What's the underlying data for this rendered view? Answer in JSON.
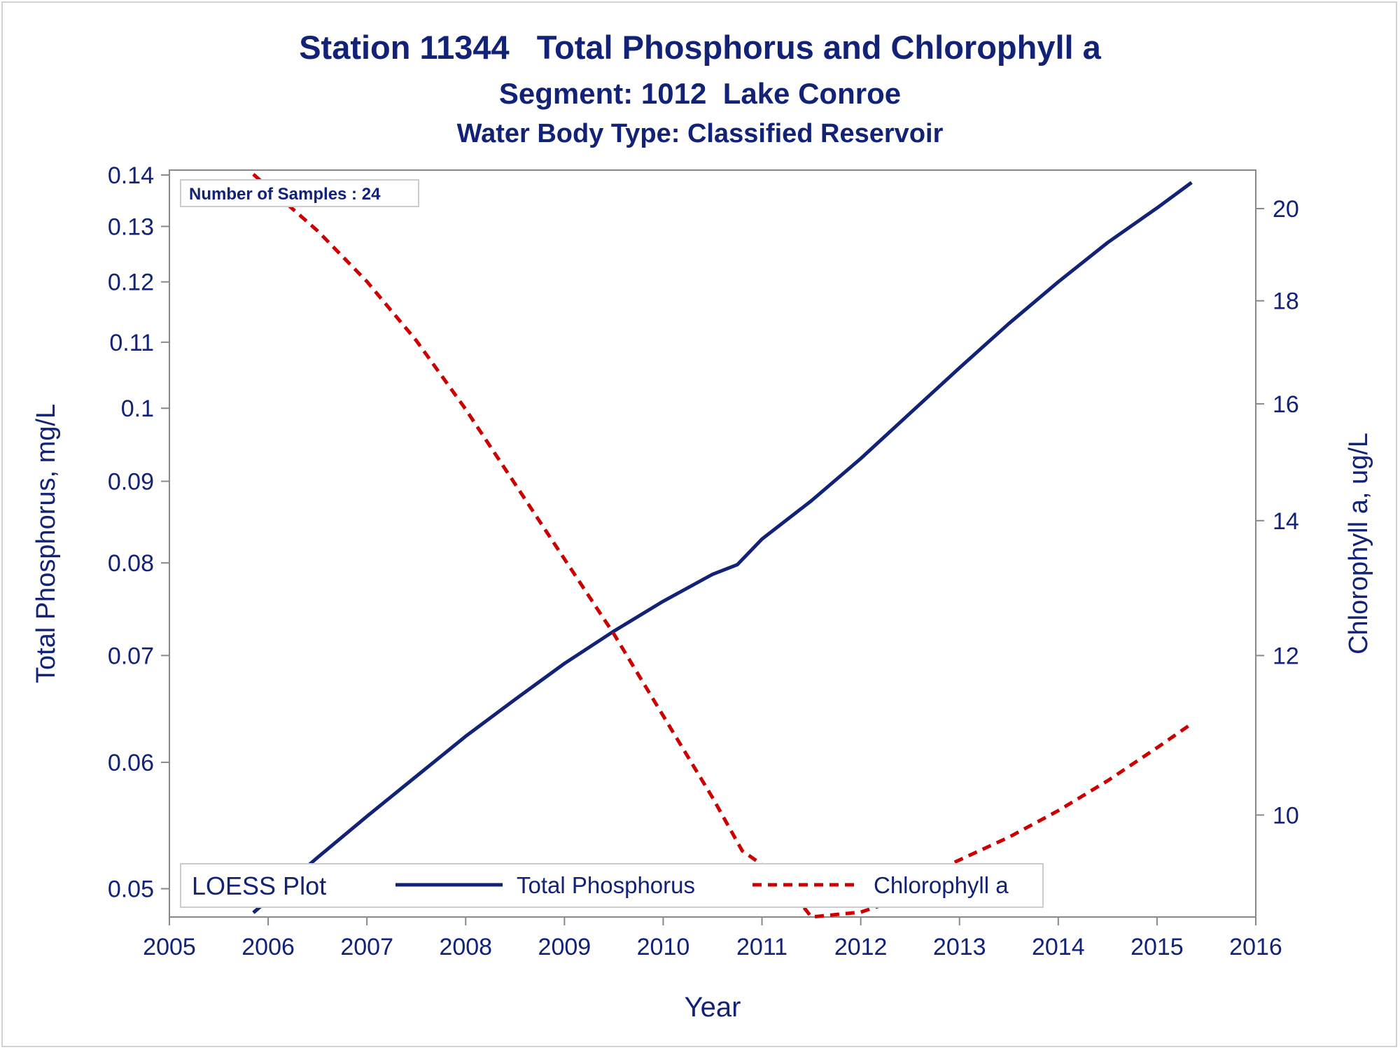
{
  "titles": {
    "line1": "Station 11344   Total Phosphorus and Chlorophyll a",
    "line2": "Segment: 1012  Lake Conroe",
    "line3": "Water Body Type: Classified Reservoir"
  },
  "inset": {
    "label": "Number of Samples : 24"
  },
  "legend": {
    "title": "LOESS Plot",
    "items": [
      {
        "label": "Total Phosphorus",
        "color": "#112277",
        "style": "solid"
      },
      {
        "label": "Chlorophyll a",
        "color": "#cc0000",
        "style": "dashed"
      }
    ]
  },
  "colors": {
    "text": "#112277",
    "axis": "#888888",
    "frame": "#d2d2d2",
    "tp": "#112277",
    "chl": "#cc0000"
  },
  "chart_data": {
    "type": "line",
    "xlabel": "Year",
    "ylabel": "Total Phosphorus, mg/L",
    "y2label": "Chlorophyll a, ug/L",
    "x_ticks": [
      2005,
      2006,
      2007,
      2008,
      2009,
      2010,
      2011,
      2012,
      2013,
      2014,
      2015,
      2016
    ],
    "y_ticks": [
      "0.05",
      "0.06",
      "0.07",
      "0.08",
      "0.09",
      "0.1",
      "0.11",
      "0.12",
      "0.13",
      "0.14"
    ],
    "y2_ticks": [
      "10",
      "12",
      "14",
      "16",
      "18",
      "20"
    ],
    "xlim": [
      2005,
      2016
    ],
    "ylim": [
      0.048,
      0.141
    ],
    "y2lim": [
      8.9,
      20.9
    ],
    "y_scale": "log",
    "y2_scale": "log",
    "legend_position": "bottom-inside",
    "series": [
      {
        "name": "Total Phosphorus",
        "axis": "left",
        "x": [
          2005.85,
          2006.5,
          2007.0,
          2007.5,
          2008.0,
          2008.5,
          2009.0,
          2009.5,
          2010.0,
          2010.5,
          2010.75,
          2011.0,
          2011.5,
          2012.0,
          2012.5,
          2013.0,
          2013.5,
          2014.0,
          2014.5,
          2015.0,
          2015.35
        ],
        "y": [
          0.0483,
          0.0523,
          0.0555,
          0.0588,
          0.0623,
          0.0657,
          0.0692,
          0.0725,
          0.0757,
          0.0787,
          0.0798,
          0.0828,
          0.0875,
          0.093,
          0.0993,
          0.106,
          0.113,
          0.12,
          0.127,
          0.1335,
          0.1385
        ]
      },
      {
        "name": "Chlorophyll a",
        "axis": "right",
        "x": [
          2005.85,
          2006.5,
          2007.0,
          2007.5,
          2008.0,
          2008.5,
          2009.0,
          2009.5,
          2010.0,
          2010.5,
          2010.8,
          2011.0,
          2011.2,
          2011.5,
          2012.0,
          2012.3,
          2012.5,
          2013.0,
          2013.5,
          2014.0,
          2014.5,
          2015.0,
          2015.35
        ],
        "y": [
          20.8,
          19.5,
          18.4,
          17.2,
          15.9,
          14.6,
          13.4,
          12.3,
          11.2,
          10.2,
          9.6,
          9.45,
          9.3,
          8.9,
          8.95,
          9.05,
          9.25,
          9.5,
          9.75,
          10.05,
          10.4,
          10.8,
          11.1
        ]
      }
    ]
  }
}
